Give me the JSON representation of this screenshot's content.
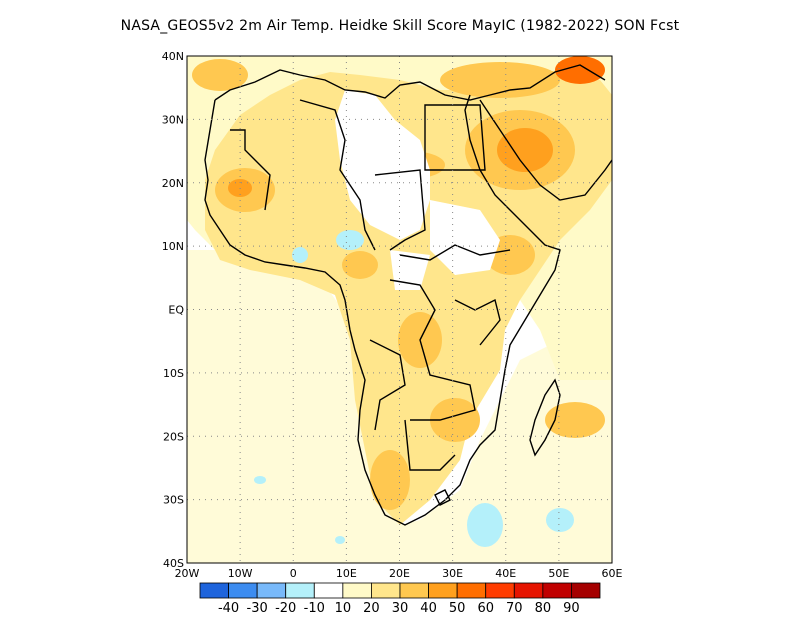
{
  "title": "NASA_GEOS5v2 2m Air Temp. Heidke Skill Score MayIC (1982-2022) SON Fcst",
  "map": {
    "lon_labels": [
      "20W",
      "10W",
      "0",
      "10E",
      "20E",
      "30E",
      "40E",
      "50E",
      "60E"
    ],
    "lat_labels": [
      "40N",
      "30N",
      "20N",
      "10N",
      "EQ",
      "10S",
      "20S",
      "30S",
      "40S"
    ],
    "lon_range": [
      -20,
      60
    ],
    "lat_range": [
      -40,
      40
    ],
    "grid": "dotted"
  },
  "colorbar": {
    "colors": [
      "#1e64dc",
      "#3c8cf0",
      "#78b9fa",
      "#b4f0fa",
      "#ffffff",
      "#fffac8",
      "#ffe68c",
      "#ffc850",
      "#ffa01e",
      "#ff6e00",
      "#ff3c00",
      "#e61400",
      "#c00000",
      "#a50000"
    ],
    "labels": [
      "-40",
      "-30",
      "-20",
      "-10",
      "10",
      "20",
      "30",
      "40",
      "50",
      "60",
      "70",
      "80",
      "90"
    ]
  }
}
